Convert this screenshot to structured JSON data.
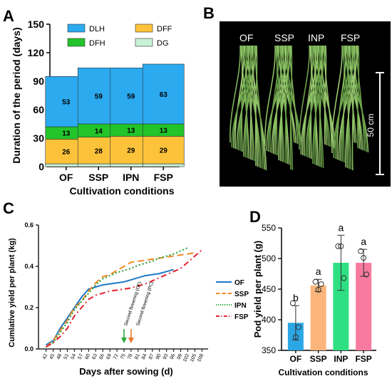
{
  "chart_data": [
    {
      "panel": "A",
      "type": "bar",
      "stacked": true,
      "categories": [
        "OF",
        "SSP",
        "IPN",
        "FSP"
      ],
      "xlabel": "Cultivation conditions",
      "ylabel": "Duration of the period (days)",
      "ylim": [
        0,
        150
      ],
      "yticks": [
        "0",
        "30",
        "60",
        "90",
        "120",
        "150"
      ],
      "legend_placement": "top",
      "series": [
        {
          "name": "DG",
          "color": "#c8f2d6",
          "values": [
            3,
            3,
            3,
            3
          ],
          "labels": [
            "",
            "",
            "",
            ""
          ]
        },
        {
          "name": "DFF",
          "color": "#fcc33a",
          "values": [
            26,
            28,
            29,
            29
          ],
          "labels": [
            "26",
            "28",
            "29",
            "29"
          ]
        },
        {
          "name": "DFH",
          "color": "#22c42a",
          "values": [
            13,
            14,
            13,
            13
          ],
          "labels": [
            "13",
            "14",
            "13",
            "13"
          ]
        },
        {
          "name": "DLH",
          "color": "#2baaf0",
          "values": [
            53,
            59,
            59,
            63
          ],
          "labels": [
            "53",
            "59",
            "59",
            "63"
          ]
        }
      ],
      "legend": [
        "DLH",
        "DFF",
        "DFH",
        "DG"
      ]
    },
    {
      "panel": "B",
      "type": "photo",
      "labels": [
        "OF",
        "SSP",
        "INP",
        "FSP"
      ],
      "scale_label": "50 cm"
    },
    {
      "panel": "C",
      "type": "line",
      "xlabel": "Days after sowing (d)",
      "ylabel": "Cumlative yield per plant (kg)",
      "ylim": [
        0,
        0.6
      ],
      "yticks": [
        "0.0",
        "0.2",
        "0.4",
        "0.6"
      ],
      "x_ticks": [
        "42",
        "45",
        "48",
        "51",
        "54",
        "57",
        "60",
        "63",
        "66",
        "69",
        "72",
        "75",
        "78",
        "81",
        "84",
        "87",
        "90",
        "93",
        "96",
        "99",
        "102",
        "105",
        "108"
      ],
      "legend_placement": "right",
      "annotations": [
        {
          "text": "Second flowering (OF)",
          "x": 75,
          "color": "#2aa83c"
        },
        {
          "text": "Second flowering (PC)",
          "x": 78,
          "color": "#e8762b"
        }
      ],
      "series": [
        {
          "name": "OF",
          "color": "#1f78c8",
          "dash": "",
          "x": [
            42,
            45,
            48,
            51,
            54,
            57,
            60,
            63,
            66,
            69,
            72,
            75,
            78,
            81,
            84,
            87,
            90,
            93,
            96
          ],
          "y": [
            0.02,
            0.04,
            0.1,
            0.15,
            0.2,
            0.25,
            0.29,
            0.3,
            0.31,
            0.315,
            0.32,
            0.325,
            0.335,
            0.345,
            0.355,
            0.36,
            0.365,
            0.375,
            0.385
          ]
        },
        {
          "name": "SSP",
          "color": "#f08a24",
          "dash": "9,5",
          "x": [
            42,
            45,
            48,
            51,
            54,
            57,
            60,
            63,
            66,
            69,
            72,
            75,
            78,
            81,
            84,
            87,
            90,
            93,
            96,
            99,
            102,
            105
          ],
          "y": [
            0.01,
            0.04,
            0.09,
            0.14,
            0.2,
            0.23,
            0.28,
            0.32,
            0.35,
            0.36,
            0.38,
            0.4,
            0.42,
            0.425,
            0.43,
            0.435,
            0.44,
            0.445,
            0.45,
            0.455,
            0.46,
            0.465
          ]
        },
        {
          "name": "IPN",
          "color": "#1e9e2e",
          "dash": "2,3",
          "x": [
            42,
            45,
            48,
            51,
            54,
            57,
            60,
            63,
            66,
            69,
            72,
            75,
            78,
            81,
            84,
            87,
            90,
            93,
            96,
            99,
            102
          ],
          "y": [
            0.01,
            0.03,
            0.08,
            0.13,
            0.19,
            0.23,
            0.27,
            0.31,
            0.34,
            0.355,
            0.37,
            0.38,
            0.39,
            0.405,
            0.415,
            0.425,
            0.44,
            0.45,
            0.46,
            0.475,
            0.49
          ]
        },
        {
          "name": "FSP",
          "color": "#e32030",
          "dash": "8,4,2,4",
          "x": [
            42,
            45,
            48,
            51,
            54,
            57,
            60,
            63,
            66,
            69,
            72,
            75,
            78,
            81,
            84,
            87,
            90,
            93,
            96,
            99,
            102,
            105,
            108
          ],
          "y": [
            0.01,
            0.03,
            0.06,
            0.1,
            0.16,
            0.2,
            0.24,
            0.26,
            0.27,
            0.28,
            0.285,
            0.29,
            0.295,
            0.305,
            0.315,
            0.33,
            0.345,
            0.36,
            0.375,
            0.39,
            0.42,
            0.45,
            0.48
          ]
        }
      ]
    },
    {
      "panel": "D",
      "type": "bar",
      "categories": [
        "OF",
        "SSP",
        "INP",
        "FSP"
      ],
      "xlabel": "Cultivation conditions",
      "ylabel": "Pod yield per plant (g)",
      "ylim": [
        350,
        550
      ],
      "yticks": [
        "350",
        "400",
        "450",
        "500",
        "550"
      ],
      "series": [
        {
          "values": [
            395,
            456,
            493,
            493
          ],
          "errors": [
            28,
            10,
            45,
            22
          ],
          "colors": [
            "#2ba7e6",
            "#fbb57c",
            "#2ee082",
            "#f97aa0"
          ],
          "significance": [
            "b",
            "a",
            "a",
            "a"
          ],
          "points": [
            [
              427,
              372,
              388
            ],
            [
              462,
              449,
              458
            ],
            [
              520,
              520,
              468
            ],
            [
              512,
              501,
              474
            ]
          ]
        }
      ]
    }
  ],
  "panels": {
    "a": "A",
    "b": "B",
    "c": "C",
    "d": "D"
  }
}
